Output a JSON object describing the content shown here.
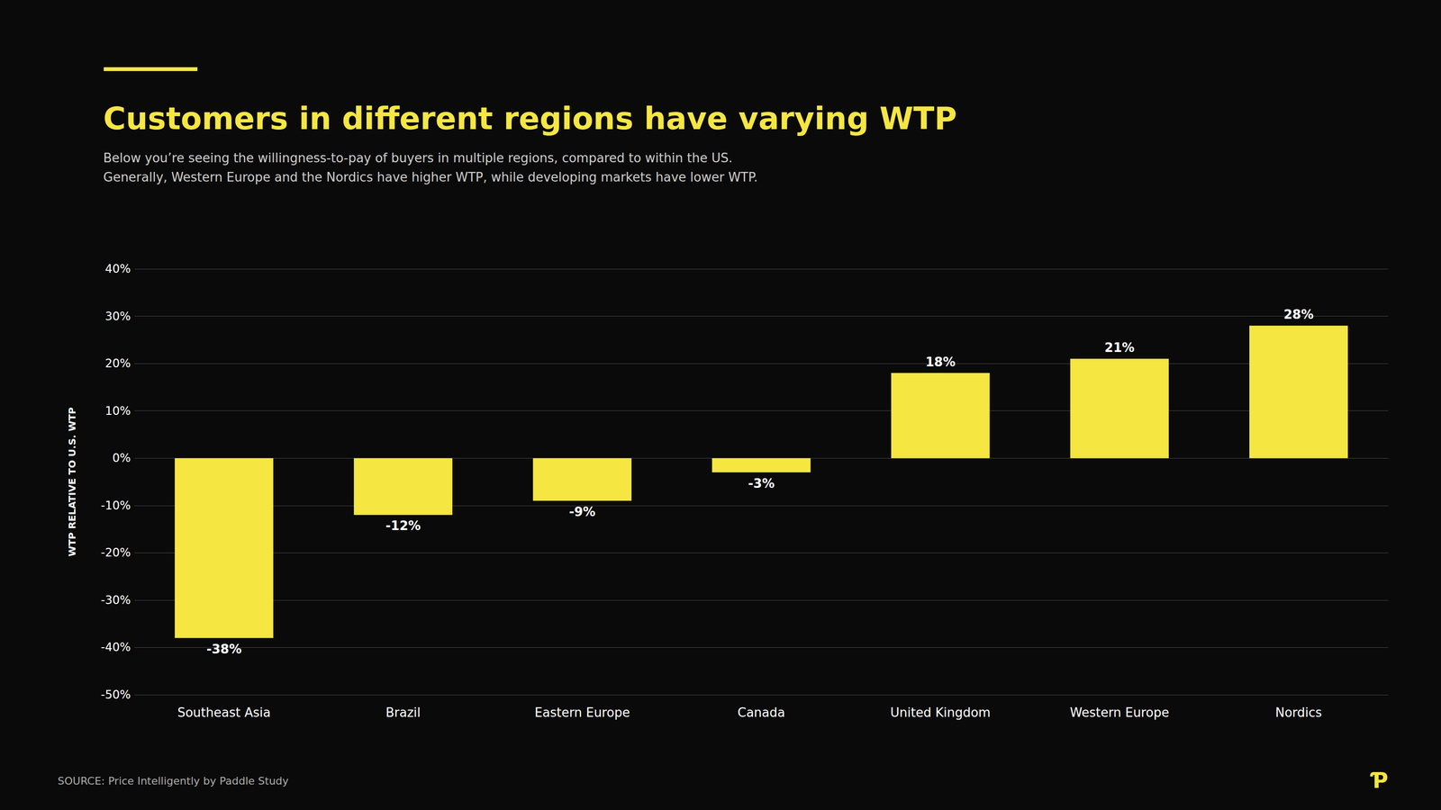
{
  "chart_data": {
    "type": "bar",
    "title": "Customers in different regions have varying WTP",
    "subtitle": [
      "Below you’re seeing the willingness-to-pay of buyers in multiple regions, compared to within the US.",
      "Generally, Western Europe and the Nordics have higher WTP, while developing markets have lower WTP."
    ],
    "ylabel": "WTP RELATIVE TO U.S. WTP",
    "source": "SOURCE: Price Intelligently by Paddle Study",
    "annotations": [
      "Ƥ"
    ],
    "categories": [
      "Southeast Asia",
      "Brazil",
      "Eastern Europe",
      "Canada",
      "United Kingdom",
      "Western Europe",
      "Nordics"
    ],
    "values": [
      -38,
      -12,
      -9,
      -3,
      18,
      21,
      28
    ],
    "value_labels": [
      "-38%",
      "-12%",
      "-9%",
      "-3%",
      "18%",
      "21%",
      "28%"
    ],
    "data_labels": true,
    "color": "#F5E642",
    "ylim": [
      -50,
      40
    ],
    "yticks": [
      {
        "value": -50,
        "label": "-50%"
      },
      {
        "value": -40,
        "label": "-40%"
      },
      {
        "value": -30,
        "label": "-30%"
      },
      {
        "value": -20,
        "label": "-20%"
      },
      {
        "value": -10,
        "label": "-10%"
      },
      {
        "value": 0,
        "label": "0%"
      },
      {
        "value": 10,
        "label": "10%"
      },
      {
        "value": 20,
        "label": "20%"
      },
      {
        "value": 30,
        "label": "30%"
      },
      {
        "value": 40,
        "label": "40%"
      }
    ],
    "grid": true
  }
}
